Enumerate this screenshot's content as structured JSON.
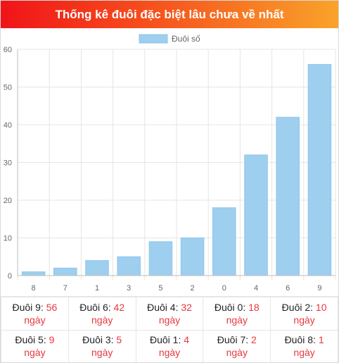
{
  "page": {
    "title": "Thống kê đuôi đặc biệt lâu chưa về nhất"
  },
  "chart_data": {
    "type": "bar",
    "title": "",
    "xlabel": "",
    "ylabel": "",
    "categories": [
      "8",
      "7",
      "1",
      "3",
      "5",
      "2",
      "0",
      "4",
      "6",
      "9"
    ],
    "series": [
      {
        "name": "Đuôi số",
        "values": [
          1,
          2,
          4,
          5,
          9,
          10,
          18,
          32,
          42,
          56
        ]
      }
    ],
    "ylim": [
      0,
      60
    ],
    "yticks": [
      "0",
      "10",
      "20",
      "30",
      "40",
      "50",
      "60"
    ],
    "grid": true,
    "legend_position": "top-center",
    "colors": {
      "bar_fill": "#9ecfef",
      "bar_stroke": "#8cc6ee",
      "grid": "#e5e5e5",
      "axis": "#bdbdbd",
      "tick_text": "#666666"
    }
  },
  "stats": {
    "unit": "ngày",
    "rows": [
      [
        {
          "label": "Đuôi 9: ",
          "value": "56"
        },
        {
          "label": "Đuôi 6: ",
          "value": "42"
        },
        {
          "label": "Đuôi 4: ",
          "value": "32"
        },
        {
          "label": "Đuôi 0: ",
          "value": "18"
        },
        {
          "label": "Đuôi 2: ",
          "value": "10"
        }
      ],
      [
        {
          "label": "Đuôi 5: ",
          "value": "9"
        },
        {
          "label": "Đuôi 3: ",
          "value": "5"
        },
        {
          "label": "Đuôi 1: ",
          "value": "4"
        },
        {
          "label": "Đuôi 7: ",
          "value": "2"
        },
        {
          "label": "Đuôi 8: ",
          "value": "1"
        }
      ]
    ]
  }
}
